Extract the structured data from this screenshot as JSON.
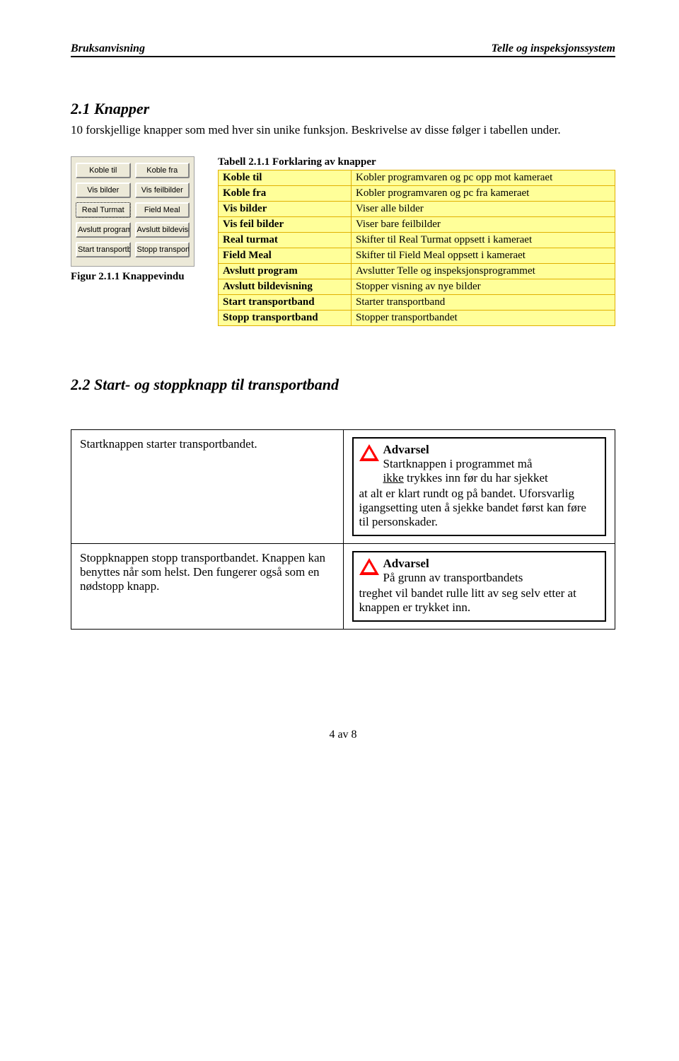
{
  "header": {
    "left": "Bruksanvisning",
    "right": "Telle og inspeksjonssystem"
  },
  "sec21": {
    "title": "2.1 Knapper",
    "intro": "10 forskjellige knapper som med hver sin unike funksjon. Beskrivelse av disse følger i tabellen under."
  },
  "figure": {
    "caption": "Figur 2.1.1 Knappevindu",
    "buttons": [
      [
        "Koble til",
        "Koble fra"
      ],
      [
        "Vis bilder",
        "Vis feilbilder"
      ],
      [
        "Real Turmat",
        "Field Meal"
      ],
      [
        "Avslutt program",
        "Avslutt bildevisning"
      ],
      [
        "Start transportband",
        "Stopp transportband"
      ]
    ]
  },
  "table": {
    "title": "Tabell 2.1.1 Forklaring av knapper",
    "cell_bg": "#ffff99",
    "border_color": "#e0b000",
    "rows": [
      [
        "Koble til",
        "Kobler programvaren og pc opp mot kameraet"
      ],
      [
        "Koble fra",
        "Kobler programvaren og pc fra kameraet"
      ],
      [
        "Vis bilder",
        "Viser alle bilder"
      ],
      [
        "Vis feil bilder",
        "Viser bare feilbilder"
      ],
      [
        "Real turmat",
        "Skifter til Real Turmat oppsett i kameraet"
      ],
      [
        "Field Meal",
        "Skifter til Field Meal oppsett i kameraet"
      ],
      [
        "Avslutt program",
        "Avslutter Telle og inspeksjonsprogrammet"
      ],
      [
        "Avslutt bildevisning",
        "Stopper visning av nye bilder"
      ],
      [
        "Start transportband",
        "Starter transportband"
      ],
      [
        "Stopp transportband",
        "Stopper transportbandet"
      ]
    ]
  },
  "sec22": {
    "title": "2.2 Start- og stoppknapp til transportband",
    "row1": {
      "left": "Startknappen starter transportbandet.",
      "warn_title": "Advarsel",
      "warn_line1": "Startknappen i programmet må",
      "warn_line2_pre": "ikke",
      "warn_line2_post": " trykkes inn før du har sjekket",
      "warn_rest": "at alt er klart rundt og på bandet. Uforsvarlig igangsetting uten å sjekke bandet først kan føre til personskader."
    },
    "row2": {
      "left": "Stoppknappen stopp transportbandet. Knappen kan benyttes når som helst. Den fungerer også som en nødstopp knapp.",
      "warn_title": "Advarsel",
      "warn_line1": "På grunn av transportbandets",
      "warn_rest": "treghet vil bandet rulle litt av seg selv etter at knappen er trykket inn."
    }
  },
  "footer": "4 av 8"
}
